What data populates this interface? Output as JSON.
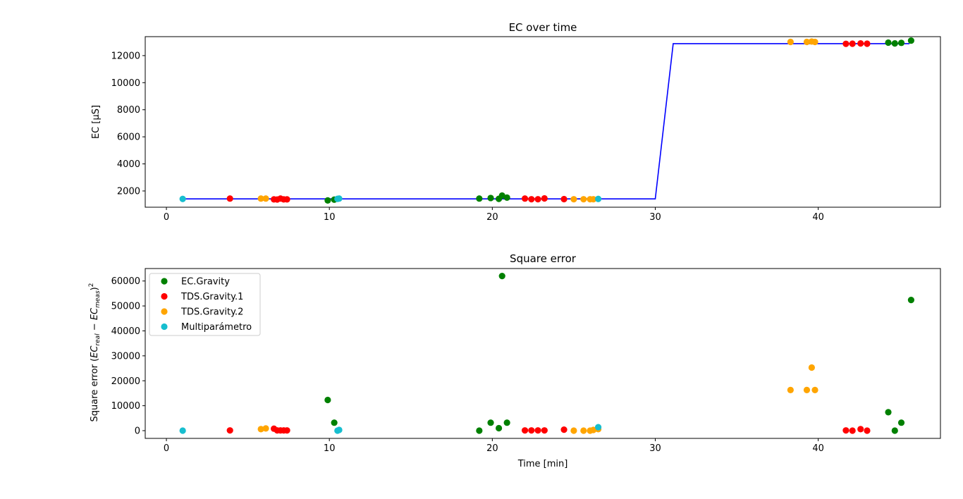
{
  "figure": {
    "xlabel": "Time [min]"
  },
  "colors": {
    "EC.Gravity": "#008000",
    "TDS.Gravity.1": "#ff0000",
    "TDS.Gravity.2": "#ffa500",
    "Multiparámetro": "#17becf",
    "reference_line": "#0000ff"
  },
  "chart_data": [
    {
      "type": "scatter",
      "title": "EC over time",
      "ylabel": "EC [μS]",
      "xlim": [
        -1.3,
        47.5
      ],
      "ylim": [
        800,
        13400
      ],
      "xticks": [
        0,
        10,
        20,
        30,
        40
      ],
      "yticks": [
        2000,
        4000,
        6000,
        8000,
        10000,
        12000
      ],
      "grid": false,
      "line": {
        "name": "",
        "x": [
          1.0,
          30.0,
          31.1,
          45.6
        ],
        "y": [
          1413,
          1413,
          12880,
          12880
        ]
      },
      "series": [
        {
          "name": "EC.Gravity",
          "x": [
            9.9,
            10.3,
            19.2,
            19.9,
            20.4,
            20.6,
            20.9,
            44.3,
            44.7,
            45.1,
            45.7
          ],
          "y": [
            1300,
            1360,
            1440,
            1480,
            1420,
            1660,
            1510,
            12960,
            12900,
            12940,
            13110
          ]
        },
        {
          "name": "TDS.Gravity.1",
          "x": [
            3.9,
            6.6,
            6.8,
            7.0,
            7.2,
            7.4,
            22.0,
            22.4,
            22.8,
            23.2,
            24.4,
            41.7,
            42.1,
            42.6,
            43.0
          ],
          "y": [
            1440,
            1380,
            1370,
            1440,
            1380,
            1380,
            1440,
            1390,
            1390,
            1450,
            1400,
            12870,
            12880,
            12900,
            12880
          ]
        },
        {
          "name": "TDS.Gravity.2",
          "x": [
            5.8,
            6.1,
            25.0,
            25.6,
            26.0,
            26.2,
            38.3,
            39.3,
            39.6,
            39.8
          ],
          "y": [
            1440,
            1440,
            1390,
            1390,
            1390,
            1390,
            13010,
            13010,
            13040,
            13010
          ]
        },
        {
          "name": "Multiparámetro",
          "x": [
            1.0,
            10.5,
            10.6,
            26.5
          ],
          "y": [
            1413,
            1420,
            1440,
            1413
          ]
        }
      ]
    },
    {
      "type": "scatter",
      "title": "Square error",
      "ylabel_main": "Square error (",
      "ylabel_ec": "EC",
      "ylabel_sub1": "real",
      "ylabel_minus": " − EC",
      "ylabel_sub2": "meas",
      "ylabel_close": ")",
      "ylabel_sup": "2",
      "xlabel": "Time [min]",
      "xlim": [
        -1.3,
        47.5
      ],
      "ylim": [
        -3100,
        65000
      ],
      "xticks": [
        0,
        10,
        20,
        30,
        40
      ],
      "yticks": [
        0,
        10000,
        20000,
        30000,
        40000,
        50000,
        60000
      ],
      "grid": false,
      "legend": "upper-left",
      "series": [
        {
          "name": "EC.Gravity",
          "x": [
            9.9,
            10.3,
            19.2,
            19.9,
            20.4,
            20.6,
            20.9,
            44.3,
            44.7,
            45.1,
            45.7
          ],
          "y": [
            12300,
            3200,
            0,
            3200,
            1000,
            62000,
            3200,
            7400,
            0,
            3200,
            52400
          ]
        },
        {
          "name": "TDS.Gravity.1",
          "x": [
            3.9,
            6.6,
            6.8,
            7.0,
            7.2,
            7.4,
            22.0,
            22.4,
            22.8,
            23.2,
            24.4,
            41.7,
            42.1,
            42.6,
            43.0
          ],
          "y": [
            100,
            800,
            100,
            100,
            100,
            100,
            100,
            100,
            100,
            100,
            400,
            100,
            0,
            600,
            0
          ]
        },
        {
          "name": "TDS.Gravity.2",
          "x": [
            5.8,
            6.1,
            25.0,
            25.6,
            26.0,
            26.2,
            26.5,
            38.3,
            39.3,
            39.6,
            39.8
          ],
          "y": [
            600,
            900,
            0,
            0,
            0,
            300,
            600,
            16300,
            16300,
            25300,
            16300
          ]
        },
        {
          "name": "Multiparámetro",
          "x": [
            1.0,
            10.5,
            10.6,
            26.5
          ],
          "y": [
            0,
            0,
            300,
            1400
          ]
        }
      ]
    }
  ]
}
